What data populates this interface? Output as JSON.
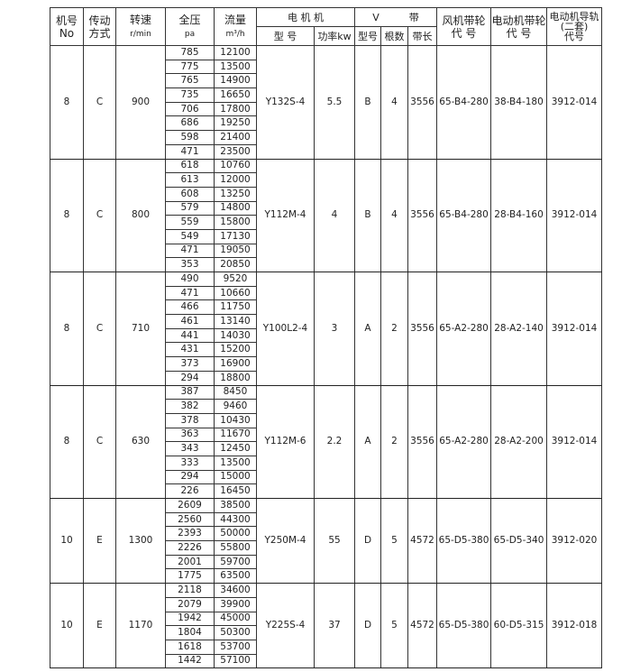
{
  "header": {
    "machine_no": [
      "机号",
      "No"
    ],
    "drive": [
      "传动",
      "方式"
    ],
    "speed": [
      "转速",
      "r/min"
    ],
    "pressure": [
      "全压",
      "pa"
    ],
    "flow": [
      "流量",
      "m³/h"
    ],
    "motor": "电 机 机",
    "motor_model": "型 号",
    "motor_power": "功率kw",
    "vbelt": "V　　　带",
    "belt_model": "型号",
    "belt_count": "根数",
    "belt_length": "带长",
    "fan_pulley": [
      "风机带轮",
      "代 号"
    ],
    "motor_pulley": [
      "电动机带轮",
      "代 号"
    ],
    "motor_rail": [
      "电动机导轨",
      "(二套)",
      "代号"
    ]
  },
  "groups": [
    {
      "no": "8",
      "drive": "C",
      "speed": "900",
      "pressure": [
        "785",
        "775",
        "765",
        "735",
        "706",
        "686",
        "598",
        "471"
      ],
      "flow": [
        "12100",
        "13500",
        "14900",
        "16650",
        "17800",
        "19250",
        "21400",
        "23500"
      ],
      "motor_model": "Y132S-4",
      "power": "5.5",
      "belt_model": "B",
      "belt_count": "4",
      "belt_length": "3556",
      "fan_pulley": "65-B4-280",
      "motor_pulley": "38-B4-180",
      "rail": "3912-014"
    },
    {
      "no": "8",
      "drive": "C",
      "speed": "800",
      "pressure": [
        "618",
        "613",
        "608",
        "579",
        "559",
        "549",
        "471",
        "353"
      ],
      "flow": [
        "10760",
        "12000",
        "13250",
        "14800",
        "15800",
        "17130",
        "19050",
        "20850"
      ],
      "motor_model": "Y112M-4",
      "power": "4",
      "belt_model": "B",
      "belt_count": "4",
      "belt_length": "3556",
      "fan_pulley": "65-B4-280",
      "motor_pulley": "28-B4-160",
      "rail": "3912-014"
    },
    {
      "no": "8",
      "drive": "C",
      "speed": "710",
      "pressure": [
        "490",
        "471",
        "466",
        "461",
        "441",
        "431",
        "373",
        "294"
      ],
      "flow": [
        "9520",
        "10660",
        "11750",
        "13140",
        "14030",
        "15200",
        "16900",
        "18800"
      ],
      "motor_model": "Y100L2-4",
      "power": "3",
      "belt_model": "A",
      "belt_count": "2",
      "belt_length": "3556",
      "fan_pulley": "65-A2-280",
      "motor_pulley": "28-A2-140",
      "rail": "3912-014"
    },
    {
      "no": "8",
      "drive": "C",
      "speed": "630",
      "pressure": [
        "387",
        "382",
        "378",
        "363",
        "343",
        "333",
        "294",
        "226"
      ],
      "flow": [
        "8450",
        "9460",
        "10430",
        "11670",
        "12450",
        "13500",
        "15000",
        "16450"
      ],
      "motor_model": "Y112M-6",
      "power": "2.2",
      "belt_model": "A",
      "belt_count": "2",
      "belt_length": "3556",
      "fan_pulley": "65-A2-280",
      "motor_pulley": "28-A2-200",
      "rail": "3912-014"
    },
    {
      "no": "10",
      "drive": "E",
      "speed": "1300",
      "pressure": [
        "2609",
        "2560",
        "2393",
        "2226",
        "2001",
        "1775"
      ],
      "flow": [
        "38500",
        "44300",
        "50000",
        "55800",
        "59700",
        "63500"
      ],
      "motor_model": "Y250M-4",
      "power": "55",
      "belt_model": "D",
      "belt_count": "5",
      "belt_length": "4572",
      "fan_pulley": "65-D5-380",
      "motor_pulley": "65-D5-340",
      "rail": "3912-020"
    },
    {
      "no": "10",
      "drive": "E",
      "speed": "1170",
      "pressure": [
        "2118",
        "2079",
        "1942",
        "1804",
        "1618",
        "1442"
      ],
      "flow": [
        "34600",
        "39900",
        "45000",
        "50300",
        "53700",
        "57100"
      ],
      "motor_model": "Y225S-4",
      "power": "37",
      "belt_model": "D",
      "belt_count": "5",
      "belt_length": "4572",
      "fan_pulley": "65-D5-380",
      "motor_pulley": "60-D5-315",
      "rail": "3912-018"
    }
  ]
}
